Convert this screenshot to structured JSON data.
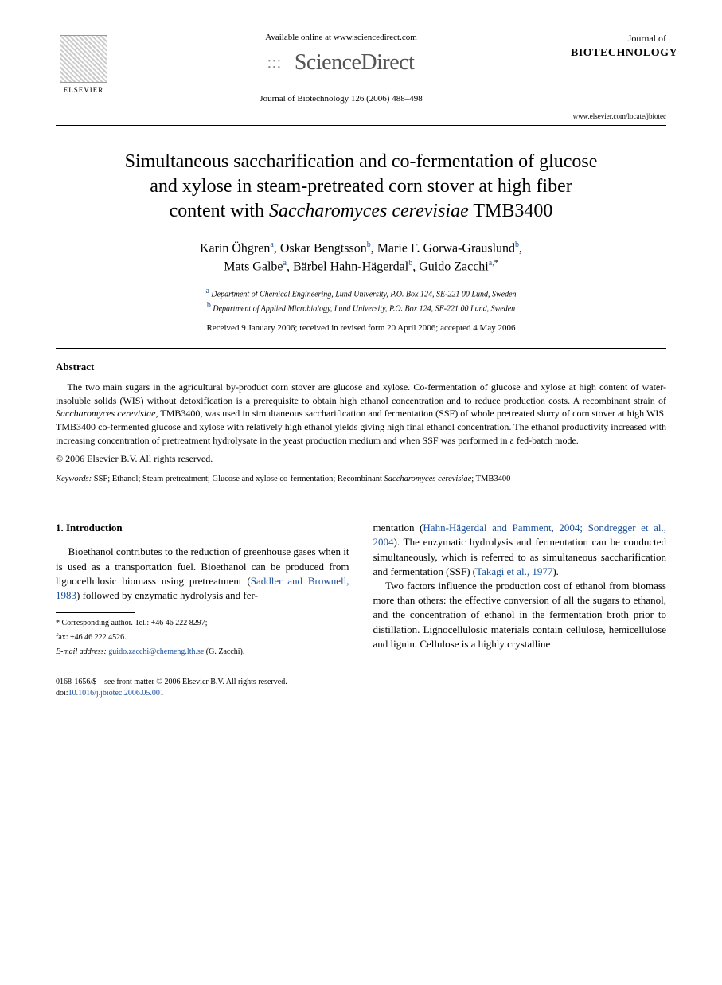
{
  "header": {
    "available_online": "Available online at www.sciencedirect.com",
    "sciencedirect": "ScienceDirect",
    "elsevier_label": "ELSEVIER",
    "journal_ref": "Journal of Biotechnology 126 (2006) 488–498",
    "journal_name_line1": "Journal of",
    "journal_name_line2": "BIOTECHNOLOGY",
    "journal_url": "www.elsevier.com/locate/jbiotec"
  },
  "title": {
    "line1": "Simultaneous saccharification and co-fermentation of glucose",
    "line2": "and xylose in steam-pretreated corn stover at high fiber",
    "line3_pre": "content with ",
    "line3_em": "Saccharomyces cerevisiae",
    "line3_post": " TMB3400"
  },
  "authors": {
    "a1_name": "Karin Öhgren",
    "a1_sup": "a",
    "a2_name": "Oskar Bengtsson",
    "a2_sup": "b",
    "a3_name": "Marie F. Gorwa-Grauslund",
    "a3_sup": "b",
    "a4_name": "Mats Galbe",
    "a4_sup": "a",
    "a5_name": "Bärbel Hahn-Hägerdal",
    "a5_sup": "b",
    "a6_name": "Guido Zacchi",
    "a6_sup": "a,",
    "a6_star": "*"
  },
  "affiliations": {
    "a_sup": "a",
    "a_text": " Department of Chemical Engineering, Lund University, P.O. Box 124, SE-221 00 Lund, Sweden",
    "b_sup": "b",
    "b_text": " Department of Applied Microbiology, Lund University, P.O. Box 124, SE-221 00 Lund, Sweden"
  },
  "history": "Received 9 January 2006; received in revised form 20 April 2006; accepted 4 May 2006",
  "abstract": {
    "heading": "Abstract",
    "body_pre": "The two main sugars in the agricultural by-product corn stover are glucose and xylose. Co-fermentation of glucose and xylose at high content of water-insoluble solids (WIS) without detoxification is a prerequisite to obtain high ethanol concentration and to reduce production costs. A recombinant strain of ",
    "body_em": "Saccharomyces cerevisiae",
    "body_post": ", TMB3400, was used in simultaneous saccharification and fermentation (SSF) of whole pretreated slurry of corn stover at high WIS. TMB3400 co-fermented glucose and xylose with relatively high ethanol yields giving high final ethanol concentration. The ethanol productivity increased with increasing concentration of pretreatment hydrolysate in the yeast production medium and when SSF was performed in a fed-batch mode.",
    "copyright": "© 2006 Elsevier B.V. All rights reserved."
  },
  "keywords": {
    "label": "Keywords:  ",
    "text_pre": "SSF; Ethanol; Steam pretreatment; Glucose and xylose co-fermentation; Recombinant ",
    "text_em": "Saccharomyces cerevisiae",
    "text_post": "; TMB3400"
  },
  "intro": {
    "heading": "1.  Introduction",
    "col1_para1_pre": "Bioethanol contributes to the reduction of greenhouse gases when it is used as a transportation fuel. Bioethanol can be produced from lignocellulosic biomass using pretreatment (",
    "col1_para1_cite1": "Saddler and Brownell, 1983",
    "col1_para1_post": ") followed by enzymatic hydrolysis and fer-",
    "col2_para1_pre": "mentation (",
    "col2_para1_cite1": "Hahn-Hägerdal and Pamment, 2004; Sondregger et al., 2004",
    "col2_para1_mid": "). The enzymatic hydrolysis and fermentation can be conducted simultaneously, which is referred to as simultaneous saccharification and fermentation (SSF) (",
    "col2_para1_cite2": "Takagi et al., 1977",
    "col2_para1_post": ").",
    "col2_para2": "Two factors influence the production cost of ethanol from biomass more than others: the effective conversion of all the sugars to ethanol, and the concentration of ethanol in the fermentation broth prior to distillation. Lignocellulosic materials contain cellulose, hemicellulose and lignin. Cellulose is a highly crystalline"
  },
  "footnote": {
    "star": "*",
    "corr_text": " Corresponding author. Tel.: +46 46 222 8297;",
    "fax": "fax: +46 46 222 4526.",
    "email_label": "E-mail address: ",
    "email": "guido.zacchi@chemeng.lth.se",
    "email_post": " (G. Zacchi)."
  },
  "footer": {
    "front_matter": "0168-1656/$ – see front matter © 2006 Elsevier B.V. All rights reserved.",
    "doi_label": "doi:",
    "doi": "10.1016/j.jbiotec.2006.05.001"
  },
  "colors": {
    "link": "#1a4f9c",
    "text": "#000000",
    "background": "#ffffff"
  }
}
